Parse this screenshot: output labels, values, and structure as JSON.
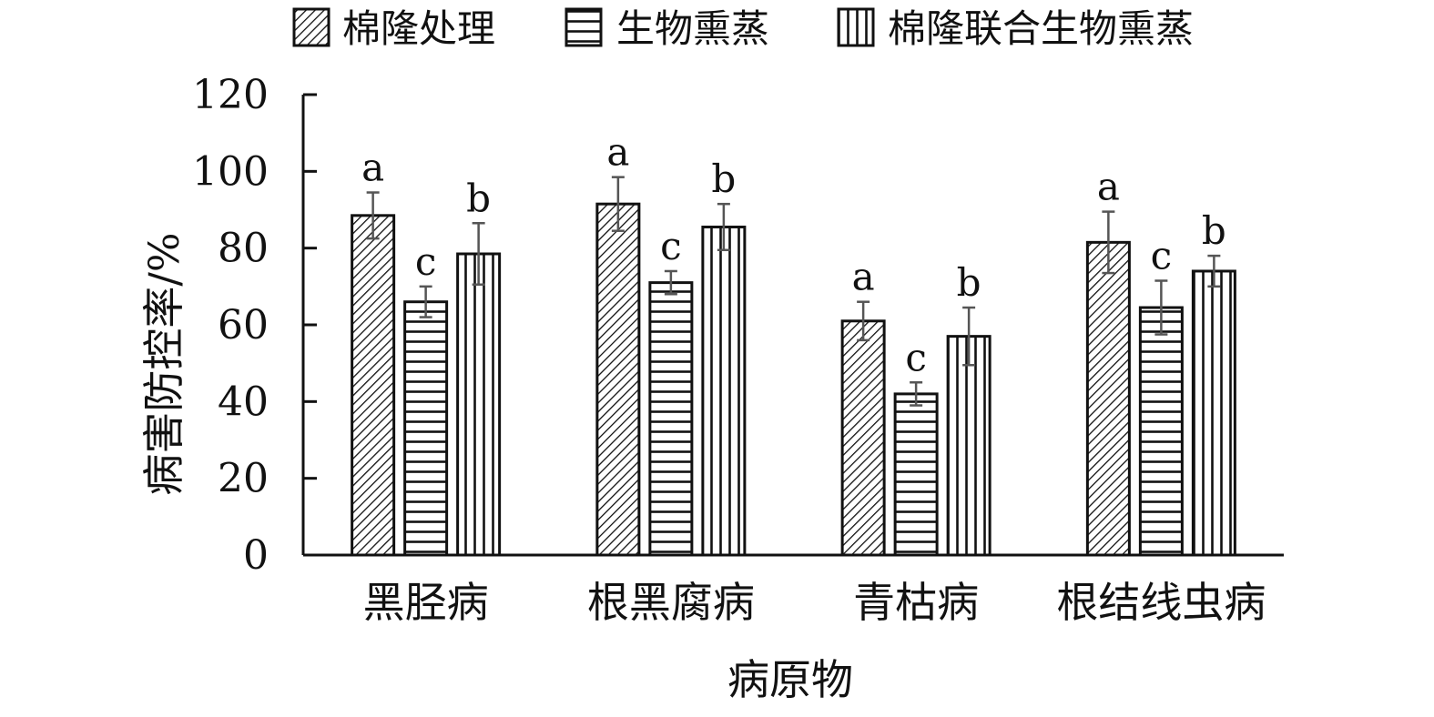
{
  "chart_data": {
    "type": "bar",
    "title": "",
    "xlabel": "病原物",
    "ylabel": "病害防控率/%",
    "ylim": [
      0,
      120
    ],
    "yticks": [
      0,
      20,
      40,
      60,
      80,
      100,
      120
    ],
    "grid": false,
    "legend_position": "top",
    "categories": [
      "黑胫病",
      "根黑腐病",
      "青枯病",
      "根结线虫病"
    ],
    "series": [
      {
        "name": "棉隆处理",
        "pattern": "diagonal-hatch",
        "values": [
          88.5,
          91.5,
          61,
          81.5
        ],
        "errors": [
          6,
          7,
          5,
          8
        ],
        "significance": [
          "a",
          "a",
          "a",
          "a"
        ]
      },
      {
        "name": "生物熏蒸",
        "pattern": "horizontal-lines",
        "values": [
          66,
          71,
          42,
          64.5
        ],
        "errors": [
          4,
          3,
          3,
          7
        ],
        "significance": [
          "c",
          "c",
          "c",
          "c"
        ]
      },
      {
        "name": "棉隆联合生物熏蒸",
        "pattern": "vertical-lines",
        "values": [
          78.5,
          85.5,
          57,
          74
        ],
        "errors": [
          8,
          6,
          7.5,
          4
        ],
        "significance": [
          "b",
          "b",
          "b",
          "b"
        ]
      }
    ]
  },
  "colors": {
    "ink": "#111111",
    "fill": "#ffffff",
    "error_bar": "#555555"
  }
}
